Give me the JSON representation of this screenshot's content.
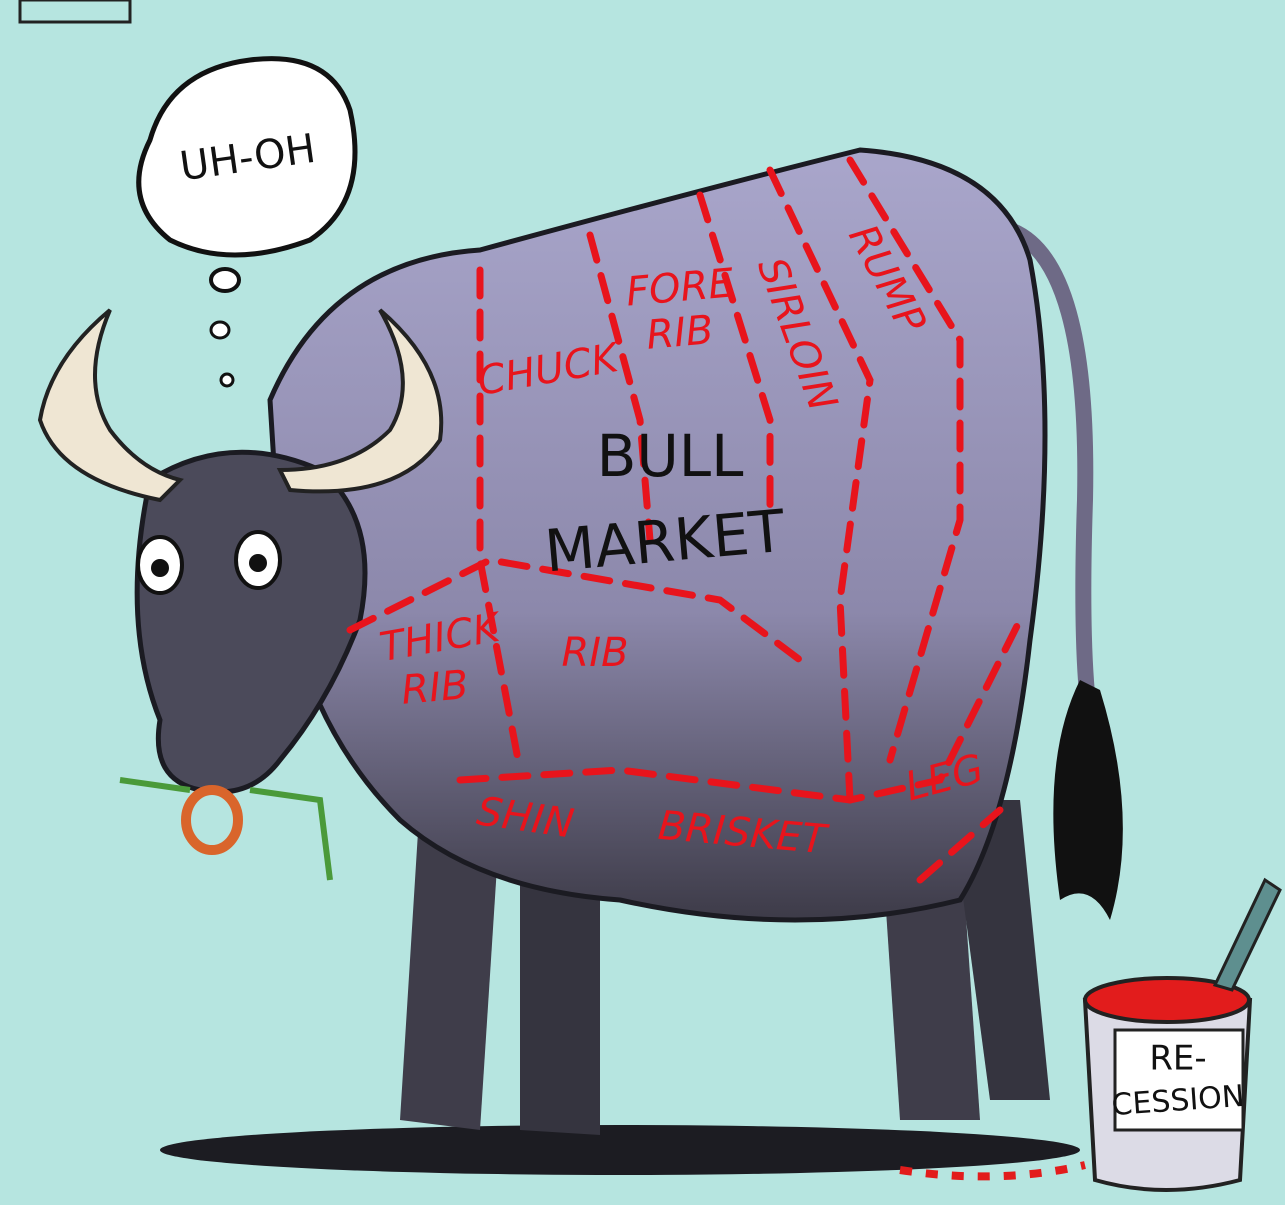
{
  "thought_bubble": {
    "text": "UH-OH"
  },
  "body_label": {
    "lines": [
      "BULL",
      "MARKET"
    ]
  },
  "cuts": [
    {
      "lines": [
        "CHUCK"
      ]
    },
    {
      "lines": [
        "FORE",
        "RIB"
      ]
    },
    {
      "lines": [
        "SIRLOIN"
      ]
    },
    {
      "lines": [
        "RUMP"
      ]
    },
    {
      "lines": [
        "THICK",
        "RIB"
      ]
    },
    {
      "lines": [
        "RIB"
      ]
    },
    {
      "lines": [
        "SHIN"
      ]
    },
    {
      "lines": [
        "BRISKET"
      ]
    },
    {
      "lines": [
        "LEG"
      ]
    }
  ],
  "paint_can": {
    "lines": [
      "RE-",
      "CESSION"
    ]
  }
}
